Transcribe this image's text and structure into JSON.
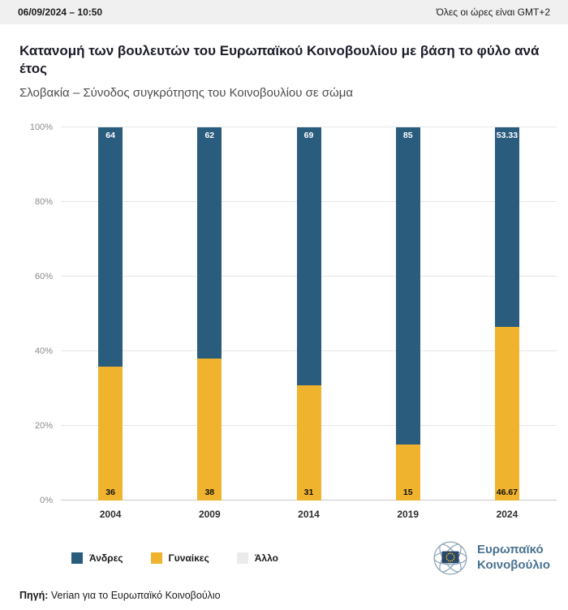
{
  "header": {
    "datetime": "06/09/2024 – 10:50",
    "timezone_note": "Όλες οι ώρες είναι GMT+2"
  },
  "title": "Κατανομή των βουλευτών του Ευρωπαϊκού Κοινοβουλίου με βάση το φύλο ανά έτος",
  "subtitle": "Σλοβακία – Σύνοδος συγκρότησης του Κοινοβουλίου σε σώμα",
  "chart_data": {
    "type": "bar",
    "stacked": true,
    "percent": true,
    "categories": [
      "2004",
      "2009",
      "2014",
      "2019",
      "2024"
    ],
    "series": [
      {
        "name": "Άνδρες",
        "color": "#2a5c7e",
        "values": [
          64,
          62,
          69,
          85,
          53.33
        ],
        "labels": [
          "64",
          "62",
          "69",
          "85",
          "53.33"
        ]
      },
      {
        "name": "Γυναίκες",
        "color": "#efb32d",
        "values": [
          36,
          38,
          31,
          15,
          46.67
        ],
        "labels": [
          "36",
          "38",
          "31",
          "15",
          "46.67"
        ]
      },
      {
        "name": "Άλλο",
        "color": "#ebebeb",
        "values": [
          0,
          0,
          0,
          0,
          0
        ],
        "labels": [
          "",
          "",
          "",
          "",
          ""
        ]
      }
    ],
    "y_ticks": [
      "0%",
      "20%",
      "40%",
      "60%",
      "80%",
      "100%"
    ],
    "ylim": [
      0,
      100
    ],
    "grid": true,
    "legend_position": "bottom"
  },
  "footer": {
    "source_label": "Πηγή:",
    "source_text": " Verian για το Ευρωπαϊκό Κοινοβούλιο",
    "logo_text_line1": "Ευρωπαϊκό",
    "logo_text_line2": "Κοινοβούλιο"
  }
}
